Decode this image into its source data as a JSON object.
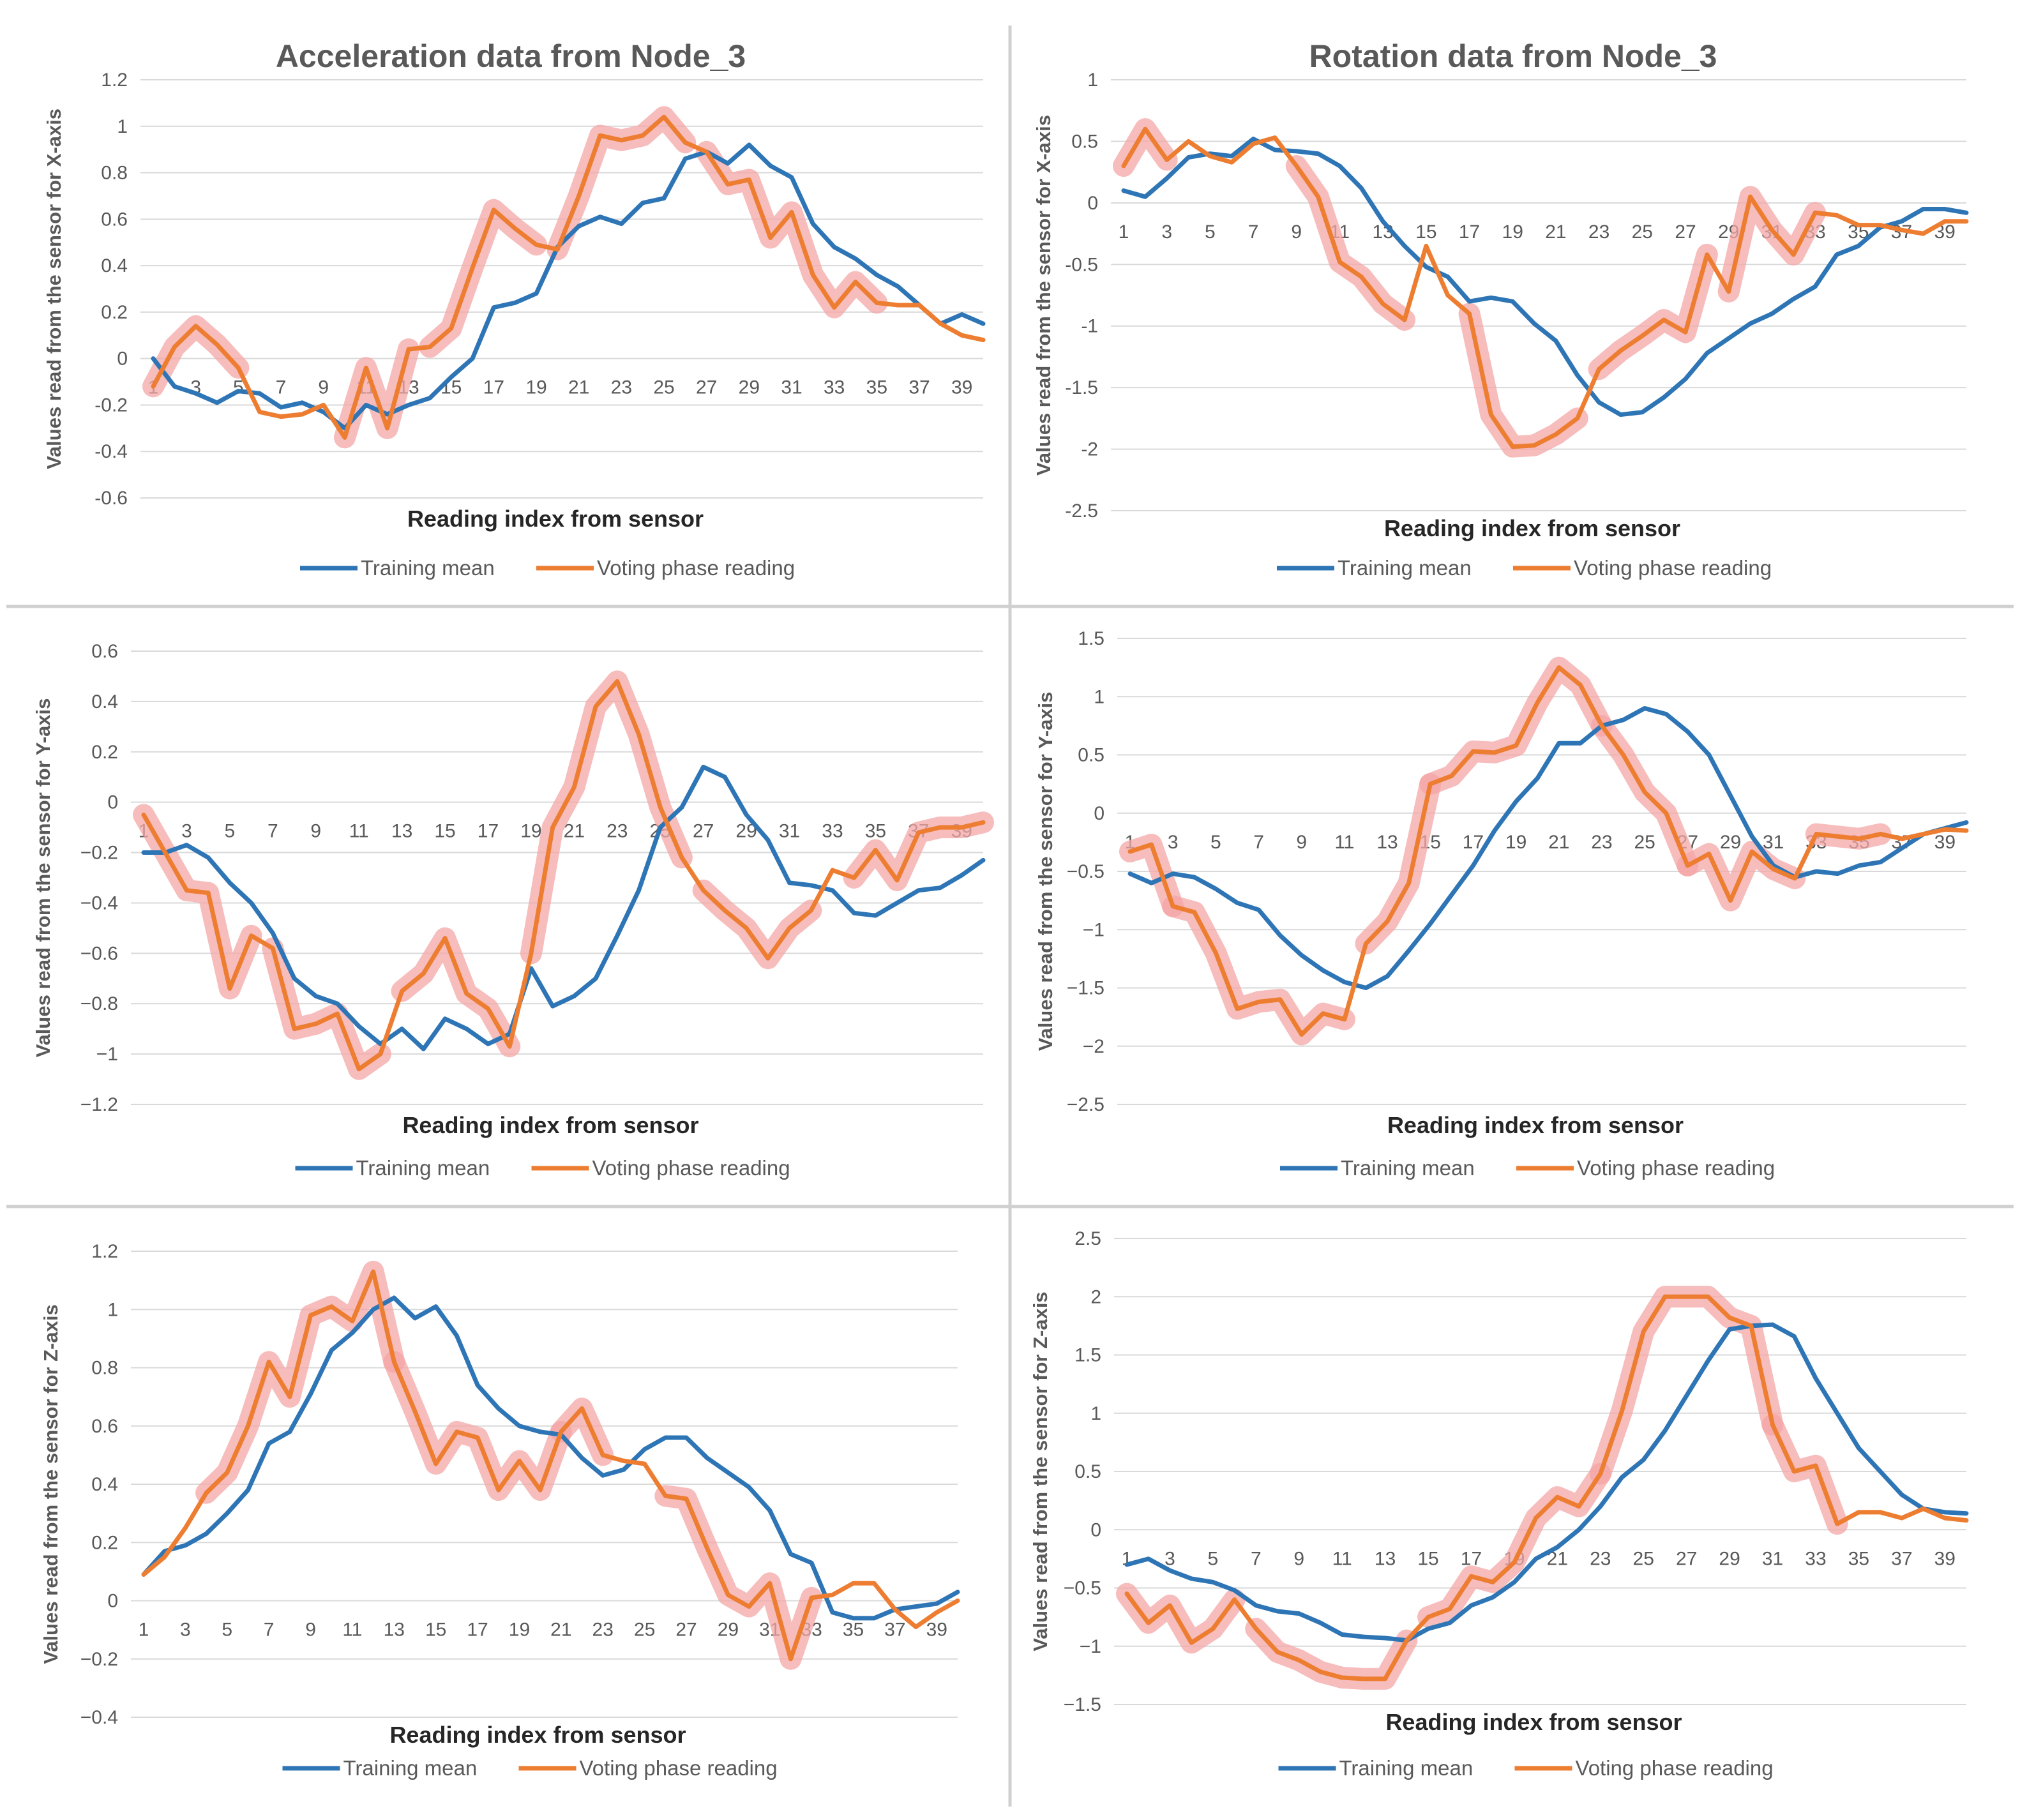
{
  "figure_title_left": "Acceleration data from Node_3",
  "figure_title_right": "Rotation data from Node_3",
  "colors": {
    "training": "#2e75b6",
    "voting": "#ed7d31",
    "highlight": "#f4a6a6",
    "grid": "#d9d9d9"
  },
  "chart_data": [
    {
      "type": "line",
      "title": "Acceleration data from Node_3",
      "xlabel": "Reading index from sensor",
      "ylabel": "Values read from the sensor for X-axis",
      "ylim": [
        -0.6,
        1.2
      ],
      "yticks": [
        -0.6,
        -0.4,
        -0.2,
        0,
        0.2,
        0.4,
        0.6,
        0.8,
        1,
        1.2
      ],
      "ytick_labels": [
        "-0.6",
        "-0.4",
        "-0.2",
        "0",
        "0.2",
        "0.4",
        "0.6",
        "0.8",
        "1",
        "1.2"
      ],
      "xticks": [
        "1",
        "3",
        "5",
        "7",
        "9",
        "11",
        "13",
        "15",
        "17",
        "19",
        "21",
        "23",
        "25",
        "27",
        "29",
        "31",
        "33",
        "35",
        "37",
        "39"
      ],
      "legend": [
        "Training mean",
        "Voting phase reading"
      ],
      "legend_position": "bottom",
      "series": [
        {
          "name": "Training mean",
          "values": [
            0,
            -0.12,
            -0.15,
            -0.19,
            -0.14,
            -0.15,
            -0.21,
            -0.19,
            -0.23,
            -0.3,
            -0.2,
            -0.24,
            -0.2,
            -0.17,
            -0.08,
            0,
            0.22,
            0.24,
            0.28,
            0.48,
            0.57,
            0.61,
            0.58,
            0.67,
            0.69,
            0.86,
            0.89,
            0.84,
            0.92,
            0.83,
            0.78,
            0.58,
            0.48,
            0.43,
            0.36,
            0.31,
            0.23,
            0.15,
            0.19,
            0.15
          ]
        },
        {
          "name": "Voting phase reading",
          "values": [
            -0.12,
            0.05,
            0.14,
            0.06,
            -0.04,
            -0.23,
            -0.25,
            -0.24,
            -0.2,
            -0.34,
            -0.04,
            -0.3,
            0.04,
            0.05,
            0.13,
            0.39,
            0.64,
            0.56,
            0.49,
            0.47,
            0.7,
            0.96,
            0.94,
            0.96,
            1.04,
            0.93,
            0.89,
            0.75,
            0.77,
            0.52,
            0.63,
            0.36,
            0.22,
            0.33,
            0.24,
            0.23,
            0.23,
            0.15,
            0.1,
            0.08
          ]
        }
      ],
      "highlight_segments": [
        [
          0,
          4
        ],
        [
          9,
          12
        ],
        [
          13,
          18
        ],
        [
          19,
          25
        ],
        [
          26,
          34
        ]
      ]
    },
    {
      "type": "line",
      "title": "Rotation data from Node_3",
      "xlabel": "Reading index from sensor",
      "ylabel": "Values read from the sensor for X-axis",
      "ylim": [
        -2.5,
        1
      ],
      "yticks": [
        -2.5,
        -2,
        -1.5,
        -1,
        -0.5,
        0,
        0.5,
        1
      ],
      "ytick_labels": [
        "-2.5",
        "-2",
        "-1.5",
        "-1",
        "-0.5",
        "0",
        "0.5",
        "1"
      ],
      "xticks": [
        "1",
        "3",
        "5",
        "7",
        "9",
        "11",
        "13",
        "15",
        "17",
        "19",
        "21",
        "23",
        "25",
        "27",
        "29",
        "31",
        "33",
        "35",
        "37",
        "39"
      ],
      "legend": [
        "Training mean",
        "Voting phase reading"
      ],
      "legend_position": "bottom",
      "series": [
        {
          "name": "Training mean",
          "values": [
            0.1,
            0.05,
            0.2,
            0.37,
            0.4,
            0.38,
            0.52,
            0.43,
            0.42,
            0.4,
            0.3,
            0.12,
            -0.15,
            -0.35,
            -0.52,
            -0.6,
            -0.8,
            -0.77,
            -0.8,
            -0.98,
            -1.12,
            -1.4,
            -1.62,
            -1.72,
            -1.7,
            -1.58,
            -1.43,
            -1.22,
            -1.1,
            -0.98,
            -0.9,
            -0.78,
            -0.68,
            -0.42,
            -0.35,
            -0.2,
            -0.15,
            -0.05,
            -0.05,
            -0.08
          ]
        },
        {
          "name": "Voting phase reading",
          "values": [
            0.3,
            0.6,
            0.35,
            0.5,
            0.38,
            0.33,
            0.48,
            0.53,
            0.3,
            0.05,
            -0.48,
            -0.6,
            -0.82,
            -0.95,
            -0.35,
            -0.75,
            -0.9,
            -1.72,
            -1.98,
            -1.97,
            -1.88,
            -1.75,
            -1.35,
            -1.2,
            -1.08,
            -0.95,
            -1.05,
            -0.42,
            -0.72,
            0.05,
            -0.22,
            -0.42,
            -0.08,
            -0.1,
            -0.18,
            -0.18,
            -0.22,
            -0.25,
            -0.15,
            -0.15
          ]
        },
        "highlight_segments"
      ],
      "highlight_segments": [
        [
          0,
          2
        ],
        [
          8,
          13
        ],
        [
          16,
          21
        ],
        [
          22,
          27
        ],
        [
          28,
          32
        ]
      ]
    },
    {
      "type": "line",
      "title": "",
      "xlabel": "Reading index from sensor",
      "ylabel": "Values read from the sensor for Y-axis",
      "ylim": [
        -1.2,
        0.6
      ],
      "yticks": [
        -1.2,
        -1,
        -0.8,
        -0.6,
        -0.4,
        -0.2,
        0,
        0.2,
        0.4,
        0.6
      ],
      "ytick_labels": [
        "−1.2",
        "−1",
        "−0.8",
        "−0.6",
        "−0.4",
        "−0.2",
        "0",
        "0.2",
        "0.4",
        "0.6"
      ],
      "xticks": [
        "1",
        "3",
        "5",
        "7",
        "9",
        "11",
        "13",
        "15",
        "17",
        "19",
        "21",
        "23",
        "25",
        "27",
        "29",
        "31",
        "33",
        "35",
        "37",
        "39"
      ],
      "legend": [
        "Training mean",
        "Voting phase reading"
      ],
      "legend_position": "bottom",
      "series": [
        {
          "name": "Training mean",
          "values": [
            -0.2,
            -0.2,
            -0.17,
            -0.22,
            -0.32,
            -0.4,
            -0.52,
            -0.7,
            -0.77,
            -0.8,
            -0.89,
            -0.96,
            -0.9,
            -0.98,
            -0.86,
            -0.9,
            -0.96,
            -0.92,
            -0.66,
            -0.81,
            -0.77,
            -0.7,
            -0.53,
            -0.35,
            -0.1,
            -0.02,
            0.14,
            0.1,
            -0.05,
            -0.15,
            -0.32,
            -0.33,
            -0.35,
            -0.44,
            -0.45,
            -0.4,
            -0.35,
            -0.34,
            -0.29,
            -0.23
          ]
        },
        {
          "name": "Voting phase reading",
          "values": [
            -0.05,
            -0.2,
            -0.35,
            -0.36,
            -0.74,
            -0.53,
            -0.58,
            -0.9,
            -0.88,
            -0.84,
            -1.06,
            -1.0,
            -0.75,
            -0.68,
            -0.54,
            -0.76,
            -0.82,
            -0.97,
            -0.6,
            -0.1,
            0.06,
            0.38,
            0.48,
            0.27,
            -0.02,
            -0.22,
            -0.35,
            -0.43,
            -0.5,
            -0.62,
            -0.5,
            -0.43,
            -0.27,
            -0.3,
            -0.19,
            -0.31,
            -0.12,
            -0.1,
            -0.1,
            -0.08
          ]
        }
      ],
      "highlight_segments": [
        [
          0,
          5
        ],
        [
          6,
          11
        ],
        [
          12,
          17
        ],
        [
          18,
          25
        ],
        [
          26,
          31
        ],
        [
          33,
          39
        ]
      ]
    },
    {
      "type": "line",
      "title": "",
      "xlabel": "Reading index from sensor",
      "ylabel": "Values read from the sensor for Y-axis",
      "ylim": [
        -2.5,
        1.5
      ],
      "yticks": [
        -2.5,
        -2,
        -1.5,
        -1,
        -0.5,
        0,
        0.5,
        1,
        1.5
      ],
      "ytick_labels": [
        "−2.5",
        "−2",
        "−1.5",
        "−1",
        "−0.5",
        "0",
        "0.5",
        "1",
        "1.5"
      ],
      "xticks": [
        "1",
        "3",
        "5",
        "7",
        "9",
        "11",
        "13",
        "15",
        "17",
        "19",
        "21",
        "23",
        "25",
        "27",
        "29",
        "31",
        "33",
        "35",
        "37",
        "39"
      ],
      "legend": [
        "Training mean",
        "Voting phase reading"
      ],
      "legend_position": "bottom",
      "series": [
        {
          "name": "Training mean",
          "values": [
            -0.52,
            -0.6,
            -0.52,
            -0.55,
            -0.65,
            -0.77,
            -0.83,
            -1.05,
            -1.22,
            -1.35,
            -1.45,
            -1.5,
            -1.4,
            -1.18,
            -0.95,
            -0.7,
            -0.45,
            -0.15,
            0.1,
            0.3,
            0.6,
            0.6,
            0.75,
            0.8,
            0.9,
            0.85,
            0.7,
            0.5,
            0.15,
            -0.2,
            -0.45,
            -0.55,
            -0.5,
            -0.52,
            -0.45,
            -0.42,
            -0.3,
            -0.18,
            -0.13,
            -0.08
          ]
        },
        {
          "name": "Voting phase reading",
          "values": [
            -0.33,
            -0.27,
            -0.8,
            -0.85,
            -1.2,
            -1.68,
            -1.62,
            -1.6,
            -1.9,
            -1.72,
            -1.77,
            -1.12,
            -0.93,
            -0.6,
            0.25,
            0.32,
            0.53,
            0.52,
            0.58,
            0.95,
            1.25,
            1.1,
            0.75,
            0.5,
            0.18,
            0.0,
            -0.45,
            -0.35,
            -0.75,
            -0.33,
            -0.48,
            -0.56,
            -0.18,
            -0.2,
            -0.22,
            -0.18,
            -0.22,
            -0.18,
            -0.14,
            -0.15
          ]
        }
      ],
      "highlight_segments": [
        [
          0,
          2
        ],
        [
          2,
          10
        ],
        [
          11,
          14
        ],
        [
          14,
          22
        ],
        [
          22,
          26
        ],
        [
          26,
          31
        ],
        [
          32,
          35
        ]
      ]
    },
    {
      "type": "line",
      "title": "",
      "xlabel": "Reading index from sensor",
      "ylabel": "Values read from the sensor for Z-axis",
      "ylim": [
        -0.4,
        1.2
      ],
      "yticks": [
        -0.4,
        -0.2,
        0,
        0.2,
        0.4,
        0.6,
        0.8,
        1,
        1.2
      ],
      "ytick_labels": [
        "−0.4",
        "−0.2",
        "0",
        "0.2",
        "0.4",
        "0.6",
        "0.8",
        "1",
        "1.2"
      ],
      "xticks": [
        "1",
        "3",
        "5",
        "7",
        "9",
        "11",
        "13",
        "15",
        "17",
        "19",
        "21",
        "23",
        "25",
        "27",
        "29",
        "31",
        "33",
        "35",
        "37",
        "39"
      ],
      "legend": [
        "Training mean",
        "Voting phase reading"
      ],
      "legend_position": "bottom",
      "series": [
        {
          "name": "Training mean",
          "values": [
            0.09,
            0.17,
            0.19,
            0.23,
            0.3,
            0.38,
            0.54,
            0.58,
            0.71,
            0.86,
            0.92,
            1.0,
            1.04,
            0.97,
            1.01,
            0.91,
            0.74,
            0.66,
            0.6,
            0.58,
            0.57,
            0.49,
            0.43,
            0.45,
            0.52,
            0.56,
            0.56,
            0.49,
            0.44,
            0.39,
            0.31,
            0.16,
            0.13,
            -0.04,
            -0.06,
            -0.06,
            -0.03,
            -0.02,
            -0.01,
            0.03
          ]
        },
        {
          "name": "Voting phase reading",
          "values": [
            0.09,
            0.15,
            0.25,
            0.37,
            0.44,
            0.6,
            0.82,
            0.7,
            0.98,
            1.01,
            0.96,
            1.13,
            0.82,
            0.65,
            0.47,
            0.58,
            0.56,
            0.38,
            0.48,
            0.38,
            0.58,
            0.66,
            0.5,
            0.48,
            0.47,
            0.36,
            0.35,
            0.18,
            0.02,
            -0.02,
            0.06,
            -0.2,
            0.01,
            0.02,
            0.06,
            0.06,
            -0.03,
            -0.09,
            -0.04,
            0
          ]
        }
      ],
      "highlight_segments": [
        [
          3,
          12
        ],
        [
          12,
          20
        ],
        [
          20,
          22
        ],
        [
          25,
          32
        ]
      ]
    },
    {
      "type": "line",
      "title": "",
      "xlabel": "Reading index from sensor",
      "ylabel": "Values read from the sensor for Z-axis",
      "ylim": [
        -1.5,
        2.5
      ],
      "yticks": [
        -1.5,
        -1,
        -0.5,
        0,
        0.5,
        1,
        1.5,
        2,
        2.5
      ],
      "ytick_labels": [
        "−1.5",
        "−1",
        "−0.5",
        "0",
        "0.5",
        "1",
        "1.5",
        "2",
        "2.5"
      ],
      "xticks": [
        "1",
        "3",
        "5",
        "7",
        "9",
        "11",
        "13",
        "15",
        "17",
        "19",
        "21",
        "23",
        "25",
        "27",
        "29",
        "31",
        "33",
        "35",
        "37",
        "39"
      ],
      "legend": [
        "Training mean",
        "Voting phase reading"
      ],
      "legend_position": "bottom",
      "series": [
        {
          "name": "Training mean",
          "values": [
            -0.3,
            -0.25,
            -0.35,
            -0.42,
            -0.45,
            -0.52,
            -0.65,
            -0.7,
            -0.72,
            -0.8,
            -0.9,
            -0.92,
            -0.93,
            -0.95,
            -0.85,
            -0.8,
            -0.65,
            -0.58,
            -0.45,
            -0.25,
            -0.15,
            0,
            0.2,
            0.45,
            0.6,
            0.85,
            1.15,
            1.45,
            1.72,
            1.75,
            1.76,
            1.66,
            1.3,
            1.0,
            0.7,
            0.5,
            0.3,
            0.18,
            0.15,
            0.14
          ]
        },
        {
          "name": "Voting phase reading",
          "values": [
            -0.55,
            -0.8,
            -0.65,
            -0.97,
            -0.85,
            -0.6,
            -0.85,
            -1.05,
            -1.12,
            -1.22,
            -1.27,
            -1.28,
            -1.28,
            -0.95,
            -0.75,
            -0.68,
            -0.4,
            -0.45,
            -0.28,
            0.1,
            0.28,
            0.2,
            0.48,
            1.02,
            1.7,
            2.0,
            2.0,
            2.0,
            1.82,
            1.75,
            0.9,
            0.5,
            0.55,
            0.05,
            0.15,
            0.15,
            0.1,
            0.18,
            0.1,
            0.08
          ]
        }
      ],
      "highlight_segments": [
        [
          0,
          5
        ],
        [
          6,
          13
        ],
        [
          14,
          22
        ],
        [
          22,
          30
        ],
        [
          30,
          33
        ]
      ]
    }
  ]
}
